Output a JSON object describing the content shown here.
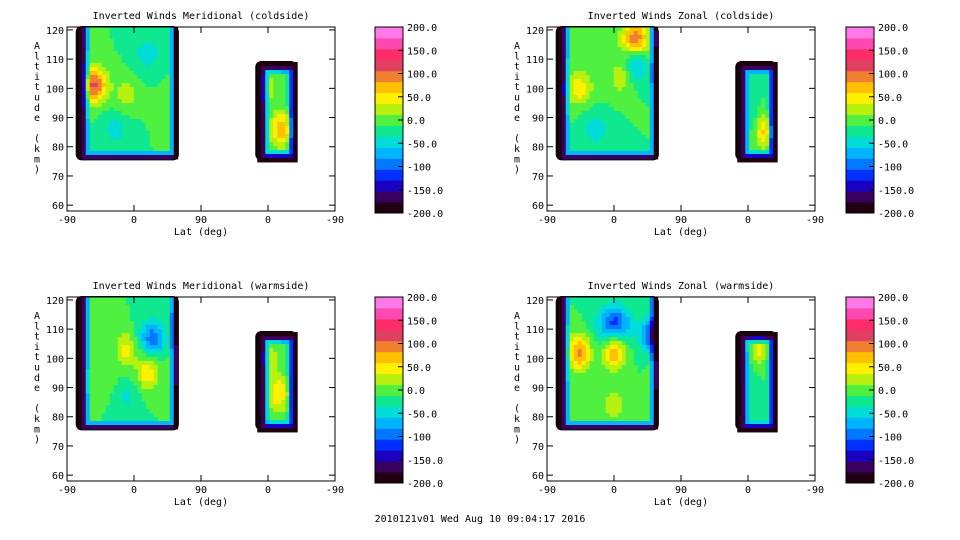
{
  "chart_data": [
    {
      "type": "heatmap",
      "title": "Inverted Winds Meridional (coldside)",
      "xlabel": "Lat (deg)",
      "ylabel": "Altitude (km)",
      "ylim": [
        58,
        121
      ],
      "xtick_labels": [
        "-90",
        "0",
        "90",
        "0",
        "-90"
      ],
      "yticks": [
        60,
        70,
        80,
        90,
        100,
        110,
        120
      ],
      "colorbar": {
        "min": -200,
        "max": 200,
        "labels": [
          "200.0",
          "150.0",
          "100.0",
          "50.0",
          "0.0",
          "-50.0",
          "-100",
          "-150.0",
          "-200.0"
        ]
      },
      "blobs": [
        {
          "x": 0.1,
          "y": 101,
          "v": 130,
          "r": 0.05
        },
        {
          "x": 0.22,
          "y": 98,
          "v": 40,
          "r": 0.04
        },
        {
          "x": 0.3,
          "y": 112,
          "v": -40,
          "r": 0.05
        },
        {
          "x": 0.18,
          "y": 86,
          "v": -35,
          "r": 0.05
        },
        {
          "x": 0.38,
          "y": 94,
          "v": 10,
          "r": 0.05
        },
        {
          "x": 0.8,
          "y": 86,
          "v": 95,
          "r": 0.04
        },
        {
          "x": 0.75,
          "y": 100,
          "v": 35,
          "r": 0.04
        }
      ]
    },
    {
      "type": "heatmap",
      "title": "Inverted Winds Zonal (coldside)",
      "xlabel": "Lat (deg)",
      "ylabel": "Altitude (km)",
      "ylim": [
        58,
        121
      ],
      "xtick_labels": [
        "-90",
        "0",
        "90",
        "0",
        "-90"
      ],
      "yticks": [
        60,
        70,
        80,
        90,
        100,
        110,
        120
      ],
      "colorbar": {
        "min": -200,
        "max": 200,
        "labels": [
          "200.0",
          "150.0",
          "100.0",
          "50.0",
          "0.0",
          "-50.0",
          "-100",
          "-150.0",
          "-200.0"
        ]
      },
      "blobs": [
        {
          "x": 0.12,
          "y": 100,
          "v": 65,
          "r": 0.05
        },
        {
          "x": 0.28,
          "y": 104,
          "v": 45,
          "r": 0.05
        },
        {
          "x": 0.33,
          "y": 117,
          "v": 120,
          "r": 0.05
        },
        {
          "x": 0.33,
          "y": 108,
          "v": -70,
          "r": 0.04
        },
        {
          "x": 0.18,
          "y": 86,
          "v": -40,
          "r": 0.05
        },
        {
          "x": 0.75,
          "y": 92,
          "v": -25,
          "r": 0.04
        },
        {
          "x": 0.81,
          "y": 85,
          "v": 80,
          "r": 0.03
        }
      ]
    },
    {
      "type": "heatmap",
      "title": "Inverted Winds Meridional (warmside)",
      "xlabel": "Lat (deg)",
      "ylabel": "Altitude (km)",
      "ylim": [
        58,
        121
      ],
      "xtick_labels": [
        "-90",
        "0",
        "90",
        "0",
        "-90"
      ],
      "yticks": [
        60,
        70,
        80,
        90,
        100,
        110,
        120
      ],
      "colorbar": {
        "min": -200,
        "max": 200,
        "labels": [
          "200.0",
          "150.0",
          "100.0",
          "50.0",
          "0.0",
          "-50.0",
          "-100",
          "-150.0",
          "-200.0"
        ]
      },
      "blobs": [
        {
          "x": 0.22,
          "y": 103,
          "v": 60,
          "r": 0.04
        },
        {
          "x": 0.32,
          "y": 107,
          "v": -90,
          "r": 0.05
        },
        {
          "x": 0.3,
          "y": 95,
          "v": 70,
          "r": 0.04
        },
        {
          "x": 0.44,
          "y": 98,
          "v": 75,
          "r": 0.04
        },
        {
          "x": 0.14,
          "y": 92,
          "v": 20,
          "r": 0.05
        },
        {
          "x": 0.22,
          "y": 87,
          "v": -30,
          "r": 0.05
        },
        {
          "x": 0.76,
          "y": 100,
          "v": 40,
          "r": 0.03
        },
        {
          "x": 0.79,
          "y": 88,
          "v": 75,
          "r": 0.04
        }
      ]
    },
    {
      "type": "heatmap",
      "title": "Inverted Winds Zonal (warmside)",
      "xlabel": "Lat (deg)",
      "ylabel": "Altitude (km)",
      "ylim": [
        58,
        121
      ],
      "xtick_labels": [
        "-90",
        "0",
        "90",
        "0",
        "-90"
      ],
      "yticks": [
        60,
        70,
        80,
        90,
        100,
        110,
        120
      ],
      "colorbar": {
        "min": -200,
        "max": 200,
        "labels": [
          "200.0",
          "150.0",
          "100.0",
          "50.0",
          "0.0",
          "-50.0",
          "-100",
          "-150.0",
          "-200.0"
        ]
      },
      "blobs": [
        {
          "x": 0.12,
          "y": 102,
          "v": 110,
          "r": 0.04
        },
        {
          "x": 0.25,
          "y": 102,
          "v": 95,
          "r": 0.04
        },
        {
          "x": 0.25,
          "y": 112,
          "v": -110,
          "r": 0.06
        },
        {
          "x": 0.4,
          "y": 108,
          "v": -120,
          "r": 0.05
        },
        {
          "x": 0.44,
          "y": 96,
          "v": 70,
          "r": 0.04
        },
        {
          "x": 0.25,
          "y": 84,
          "v": 45,
          "r": 0.04
        },
        {
          "x": 0.75,
          "y": 95,
          "v": -20,
          "r": 0.04
        },
        {
          "x": 0.79,
          "y": 103,
          "v": 60,
          "r": 0.03
        }
      ]
    }
  ],
  "footer": "2010121v01 Wed Aug 10 09:04:17 2016"
}
